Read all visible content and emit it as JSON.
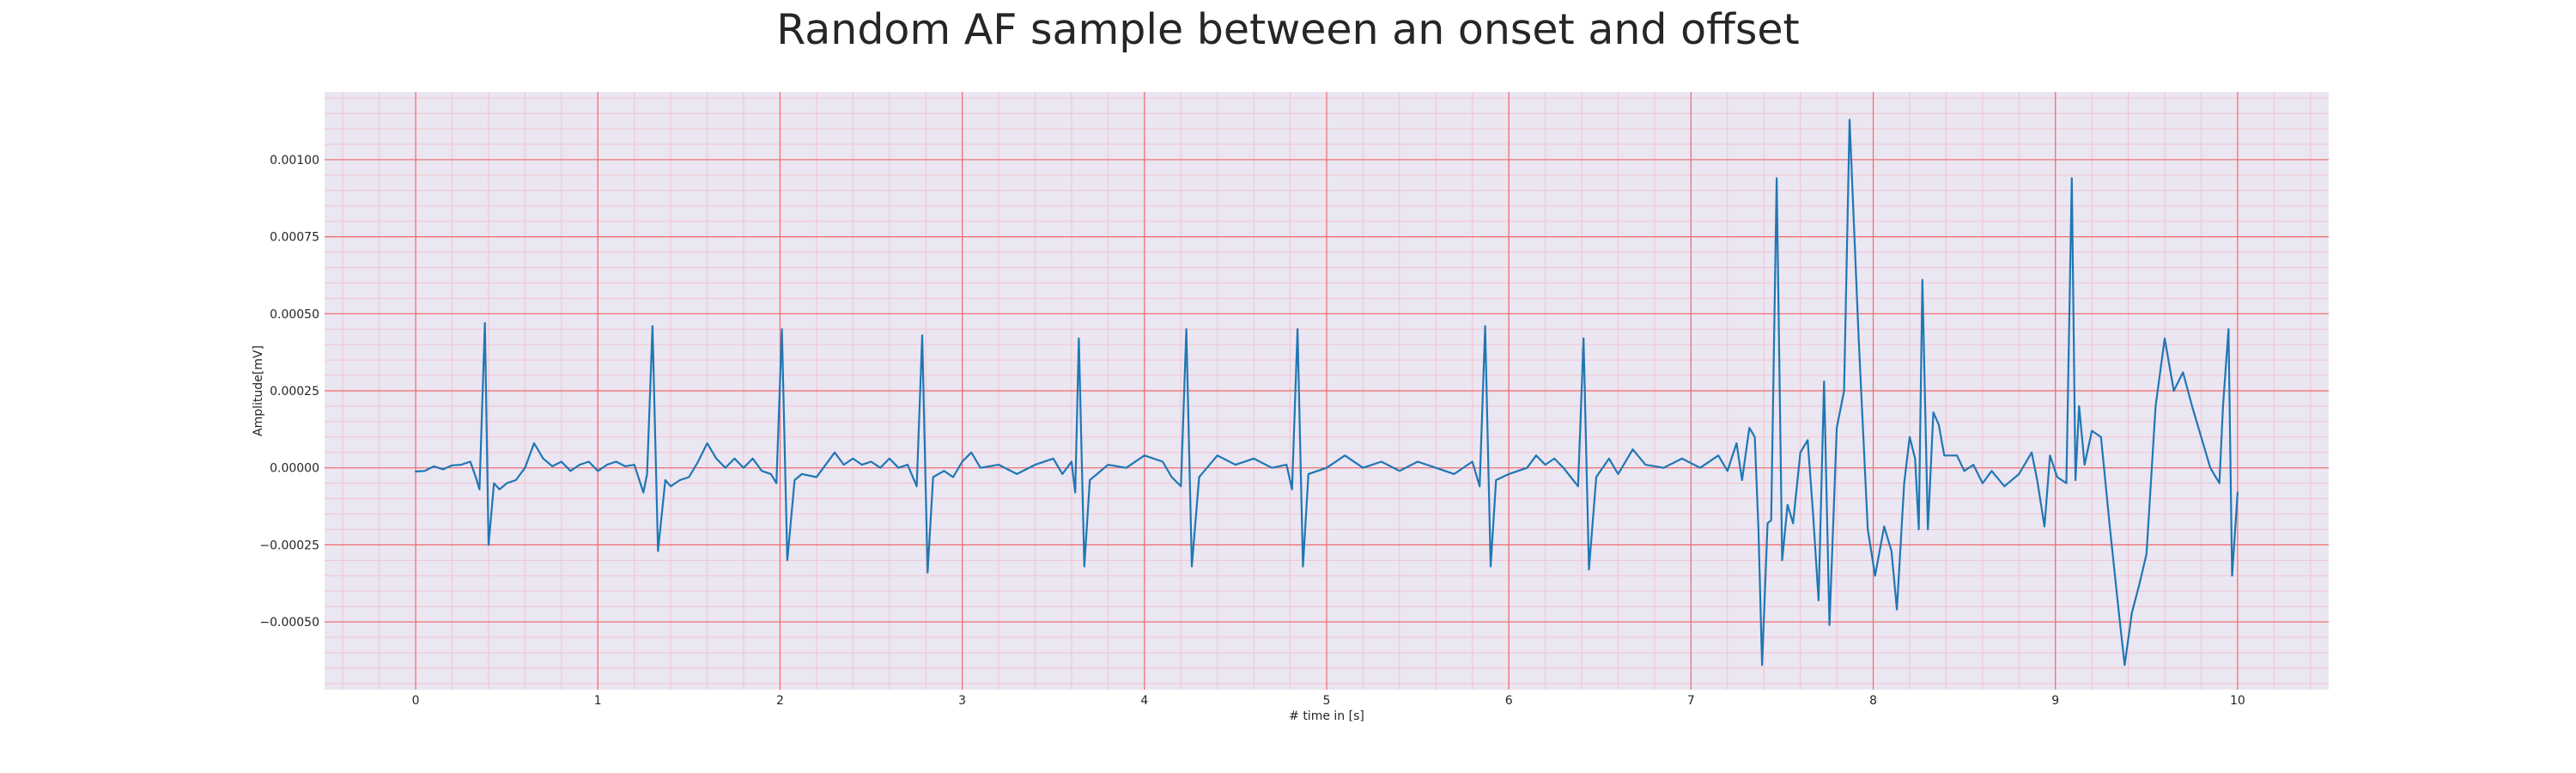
{
  "chart_data": {
    "type": "line",
    "title": "Random AF sample between an onset and offset",
    "xlabel": "# time in [s]",
    "ylabel": "Amplitude[mV]",
    "xlim": [
      -0.5,
      10.5
    ],
    "ylim": [
      -0.00072,
      0.00122
    ],
    "xticks": [
      "0",
      "1",
      "2",
      "3",
      "4",
      "5",
      "6",
      "7",
      "8",
      "9",
      "10"
    ],
    "yticks": [
      "−0.00050",
      "−0.00025",
      "0.00000",
      "0.00025",
      "0.00050",
      "0.00075",
      "0.00100"
    ],
    "grid": true,
    "colors": {
      "line": "#1f77b4",
      "major_grid": "#f06a6a",
      "minor_grid": "#f3c4cf",
      "plot_bg": "#eae6f2"
    },
    "series": [
      {
        "points": [
          [
            0.0,
            -1.2e-05
          ],
          [
            0.05,
            -1e-05
          ],
          [
            0.1,
            5e-06
          ],
          [
            0.15,
            -5e-06
          ],
          [
            0.2,
            8e-06
          ],
          [
            0.25,
            1e-05
          ],
          [
            0.3,
            2e-05
          ],
          [
            0.33,
            -3e-05
          ],
          [
            0.35,
            -7e-05
          ],
          [
            0.38,
            0.00047
          ],
          [
            0.4,
            -0.00025
          ],
          [
            0.43,
            -5e-05
          ],
          [
            0.46,
            -7e-05
          ],
          [
            0.5,
            -5e-05
          ],
          [
            0.55,
            -4e-05
          ],
          [
            0.6,
            0.0
          ],
          [
            0.65,
            8e-05
          ],
          [
            0.7,
            3e-05
          ],
          [
            0.75,
            5e-06
          ],
          [
            0.8,
            2e-05
          ],
          [
            0.85,
            -1e-05
          ],
          [
            0.9,
            1e-05
          ],
          [
            0.95,
            2e-05
          ],
          [
            1.0,
            -1e-05
          ],
          [
            1.05,
            1e-05
          ],
          [
            1.1,
            2e-05
          ],
          [
            1.15,
            5e-06
          ],
          [
            1.2,
            1e-05
          ],
          [
            1.25,
            -8e-05
          ],
          [
            1.27,
            -2e-05
          ],
          [
            1.3,
            0.00046
          ],
          [
            1.33,
            -0.00027
          ],
          [
            1.37,
            -4e-05
          ],
          [
            1.4,
            -6e-05
          ],
          [
            1.45,
            -4e-05
          ],
          [
            1.5,
            -3e-05
          ],
          [
            1.55,
            2e-05
          ],
          [
            1.6,
            8e-05
          ],
          [
            1.65,
            3e-05
          ],
          [
            1.7,
            0.0
          ],
          [
            1.75,
            3e-05
          ],
          [
            1.8,
            0.0
          ],
          [
            1.85,
            3e-05
          ],
          [
            1.9,
            -1e-05
          ],
          [
            1.95,
            -2e-05
          ],
          [
            1.98,
            -5e-05
          ],
          [
            2.01,
            0.00045
          ],
          [
            2.04,
            -0.0003
          ],
          [
            2.08,
            -4e-05
          ],
          [
            2.12,
            -2e-05
          ],
          [
            2.2,
            -3e-05
          ],
          [
            2.3,
            5e-05
          ],
          [
            2.35,
            1e-05
          ],
          [
            2.4,
            3e-05
          ],
          [
            2.45,
            1e-05
          ],
          [
            2.5,
            2e-05
          ],
          [
            2.55,
            0.0
          ],
          [
            2.6,
            3e-05
          ],
          [
            2.65,
            0.0
          ],
          [
            2.7,
            1e-05
          ],
          [
            2.75,
            -6e-05
          ],
          [
            2.78,
            0.00043
          ],
          [
            2.81,
            -0.00034
          ],
          [
            2.84,
            -3e-05
          ],
          [
            2.9,
            -1e-05
          ],
          [
            2.95,
            -3e-05
          ],
          [
            3.0,
            2e-05
          ],
          [
            3.05,
            5e-05
          ],
          [
            3.1,
            0.0
          ],
          [
            3.2,
            1e-05
          ],
          [
            3.3,
            -2e-05
          ],
          [
            3.4,
            1e-05
          ],
          [
            3.5,
            3e-05
          ],
          [
            3.55,
            -2e-05
          ],
          [
            3.6,
            2e-05
          ],
          [
            3.62,
            -8e-05
          ],
          [
            3.64,
            0.00042
          ],
          [
            3.67,
            -0.00032
          ],
          [
            3.7,
            -4e-05
          ],
          [
            3.8,
            1e-05
          ],
          [
            3.9,
            0.0
          ],
          [
            4.0,
            4e-05
          ],
          [
            4.1,
            2e-05
          ],
          [
            4.15,
            -3e-05
          ],
          [
            4.2,
            -6e-05
          ],
          [
            4.23,
            0.00045
          ],
          [
            4.26,
            -0.00032
          ],
          [
            4.3,
            -3e-05
          ],
          [
            4.4,
            4e-05
          ],
          [
            4.5,
            1e-05
          ],
          [
            4.6,
            3e-05
          ],
          [
            4.7,
            0.0
          ],
          [
            4.78,
            1e-05
          ],
          [
            4.81,
            -7e-05
          ],
          [
            4.84,
            0.00045
          ],
          [
            4.87,
            -0.00032
          ],
          [
            4.9,
            -2e-05
          ],
          [
            5.0,
            0.0
          ],
          [
            5.1,
            4e-05
          ],
          [
            5.2,
            0.0
          ],
          [
            5.3,
            2e-05
          ],
          [
            5.4,
            -1e-05
          ],
          [
            5.5,
            2e-05
          ],
          [
            5.6,
            0.0
          ],
          [
            5.7,
            -2e-05
          ],
          [
            5.8,
            2e-05
          ],
          [
            5.84,
            -6e-05
          ],
          [
            5.87,
            0.00046
          ],
          [
            5.9,
            -0.00032
          ],
          [
            5.93,
            -4e-05
          ],
          [
            6.0,
            -2e-05
          ],
          [
            6.1,
            0.0
          ],
          [
            6.15,
            4e-05
          ],
          [
            6.2,
            1e-05
          ],
          [
            6.25,
            3e-05
          ],
          [
            6.3,
            0.0
          ],
          [
            6.38,
            -6e-05
          ],
          [
            6.41,
            0.00042
          ],
          [
            6.44,
            -0.00033
          ],
          [
            6.48,
            -3e-05
          ],
          [
            6.55,
            3e-05
          ],
          [
            6.6,
            -2e-05
          ],
          [
            6.68,
            6e-05
          ],
          [
            6.75,
            1e-05
          ],
          [
            6.85,
            0.0
          ],
          [
            6.95,
            3e-05
          ],
          [
            7.05,
            0.0
          ],
          [
            7.15,
            4e-05
          ],
          [
            7.2,
            -1e-05
          ],
          [
            7.25,
            8e-05
          ],
          [
            7.28,
            -4e-05
          ],
          [
            7.32,
            0.00013
          ],
          [
            7.35,
            0.0001
          ],
          [
            7.37,
            -0.0002
          ],
          [
            7.39,
            -0.00064
          ],
          [
            7.42,
            -0.00018
          ],
          [
            7.44,
            -0.00017
          ],
          [
            7.47,
            0.00094
          ],
          [
            7.5,
            -0.0003
          ],
          [
            7.53,
            -0.00012
          ],
          [
            7.56,
            -0.00018
          ],
          [
            7.6,
            5e-05
          ],
          [
            7.64,
            9e-05
          ],
          [
            7.67,
            -0.00015
          ],
          [
            7.7,
            -0.00043
          ],
          [
            7.73,
            0.00028
          ],
          [
            7.76,
            -0.00051
          ],
          [
            7.8,
            0.00013
          ],
          [
            7.84,
            0.00025
          ],
          [
            7.87,
            0.00113
          ],
          [
            7.92,
            0.00042
          ],
          [
            7.97,
            -0.0002
          ],
          [
            8.01,
            -0.00035
          ],
          [
            8.06,
            -0.00019
          ],
          [
            8.1,
            -0.00027
          ],
          [
            8.13,
            -0.00046
          ],
          [
            8.17,
            -5e-05
          ],
          [
            8.2,
            0.0001
          ],
          [
            8.23,
            3e-05
          ],
          [
            8.25,
            -0.0002
          ],
          [
            8.27,
            0.00061
          ],
          [
            8.3,
            -0.0002
          ],
          [
            8.33,
            0.00018
          ],
          [
            8.36,
            0.00014
          ],
          [
            8.39,
            4e-05
          ],
          [
            8.42,
            4e-05
          ],
          [
            8.46,
            4e-05
          ],
          [
            8.5,
            -1e-05
          ],
          [
            8.55,
            1e-05
          ],
          [
            8.6,
            -5e-05
          ],
          [
            8.65,
            -1e-05
          ],
          [
            8.72,
            -6e-05
          ],
          [
            8.8,
            -2e-05
          ],
          [
            8.87,
            5e-05
          ],
          [
            8.9,
            -4e-05
          ],
          [
            8.94,
            -0.00019
          ],
          [
            8.97,
            4e-05
          ],
          [
            9.01,
            -3e-05
          ],
          [
            9.06,
            -5e-05
          ],
          [
            9.09,
            0.00094
          ],
          [
            9.11,
            -4e-05
          ],
          [
            9.13,
            0.0002
          ],
          [
            9.16,
            1e-05
          ],
          [
            9.2,
            0.00012
          ],
          [
            9.25,
            0.0001
          ],
          [
            9.3,
            -0.0002
          ],
          [
            9.35,
            -0.00048
          ],
          [
            9.38,
            -0.00064
          ],
          [
            9.42,
            -0.00047
          ],
          [
            9.46,
            -0.00038
          ],
          [
            9.5,
            -0.00028
          ],
          [
            9.55,
            0.0002
          ],
          [
            9.6,
            0.00042
          ],
          [
            9.65,
            0.00025
          ],
          [
            9.7,
            0.00031
          ],
          [
            9.75,
            0.0002
          ],
          [
            9.8,
            0.0001
          ],
          [
            9.85,
            0.0
          ],
          [
            9.9,
            -5e-05
          ],
          [
            9.92,
            0.0002
          ],
          [
            9.95,
            0.00045
          ],
          [
            9.97,
            -0.00035
          ],
          [
            10.0,
            -8e-05
          ]
        ]
      }
    ]
  }
}
